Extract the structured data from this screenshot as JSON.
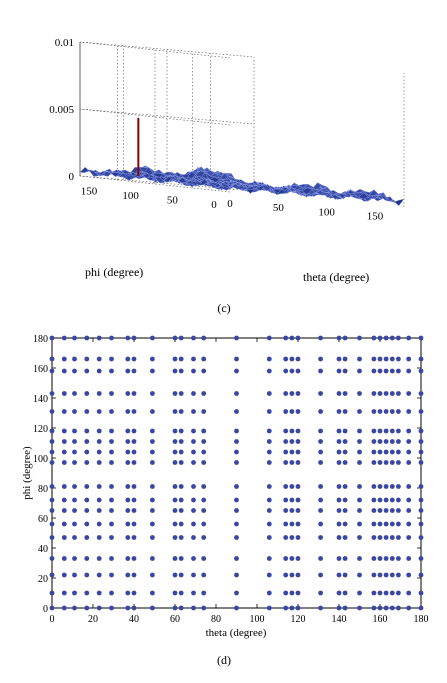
{
  "chart_data": [
    {
      "type": "surface",
      "caption": "(c)",
      "xlabel": "theta (degree)",
      "ylabel": "phi (degree)",
      "zlabel": "",
      "x_ticks": [
        "0",
        "50",
        "100",
        "150"
      ],
      "y_ticks": [
        "0",
        "50",
        "100",
        "150"
      ],
      "z_ticks": [
        "0",
        "0.005",
        "0.01"
      ],
      "xlim": [
        0,
        180
      ],
      "ylim": [
        0,
        180
      ],
      "zlim": [
        0,
        0.01
      ],
      "surface_color": "#2a3aa8",
      "peak_color": "#8b0000",
      "peak": {
        "theta": 0,
        "phi": 110,
        "value": 0.0048
      },
      "background_max": 0.0017
    },
    {
      "type": "scatter",
      "caption": "(d)",
      "xlabel": "theta (degree)",
      "ylabel": "phi (degree)",
      "x_ticks": [
        "0",
        "20",
        "40",
        "60",
        "80",
        "100",
        "120",
        "140",
        "160",
        "180"
      ],
      "y_ticks": [
        "0",
        "20",
        "40",
        "60",
        "80",
        "100",
        "120",
        "140",
        "160",
        "180"
      ],
      "xlim": [
        0,
        180
      ],
      "ylim": [
        0,
        180
      ],
      "marker_color": "#3a46a4",
      "theta_values": [
        0,
        6,
        11,
        17,
        23,
        29,
        37,
        40,
        49,
        60,
        63,
        69,
        74,
        90,
        106,
        114,
        117,
        120,
        131,
        140,
        143,
        150,
        157,
        160,
        163,
        166,
        169,
        174,
        180
      ],
      "phi_values": [
        0,
        10,
        22,
        33,
        47,
        56,
        65,
        72,
        81,
        97,
        104,
        111,
        118,
        131,
        143,
        158,
        166,
        180
      ]
    }
  ]
}
